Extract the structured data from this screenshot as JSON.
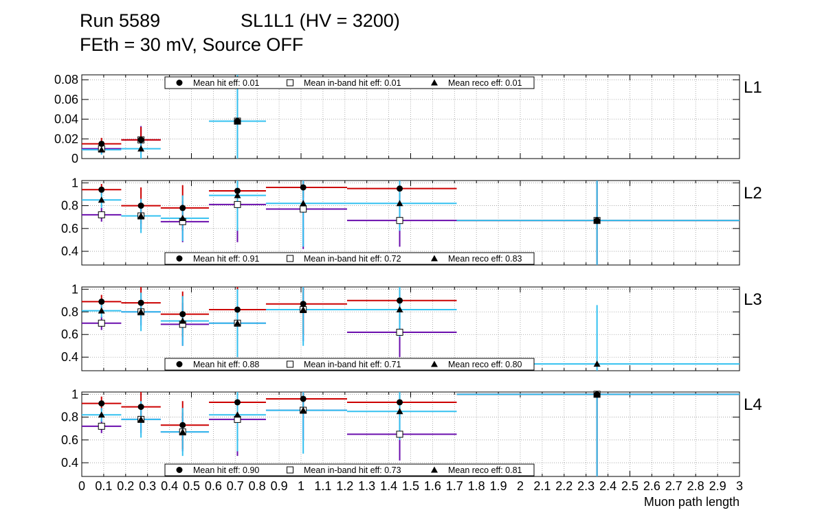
{
  "header": {
    "run": "Run 5589",
    "chamber": "SL1L1 (HV = 3200)",
    "settings": "FEth = 30 mV, Source OFF"
  },
  "colors": {
    "hit": "#cc0000",
    "inband": "#6a0dad",
    "reco": "#33c1f0",
    "grid": "#999999",
    "axis": "#000000"
  },
  "chart_data": {
    "type": "scatter",
    "xlabel": "Muon path length",
    "xlim": [
      0,
      3
    ],
    "xticks": [
      {
        "v": 0,
        "label": "0"
      },
      {
        "v": 0.1,
        "label": "0.1"
      },
      {
        "v": 0.2,
        "label": "0.2"
      },
      {
        "v": 0.3,
        "label": "0.3"
      },
      {
        "v": 0.4,
        "label": "0.4"
      },
      {
        "v": 0.5,
        "label": "0.5"
      },
      {
        "v": 0.6,
        "label": "0.6"
      },
      {
        "v": 0.7,
        "label": "0.7"
      },
      {
        "v": 0.8,
        "label": "0.8"
      },
      {
        "v": 0.9,
        "label": "0.9"
      },
      {
        "v": 1.0,
        "label": "1"
      },
      {
        "v": 1.1,
        "label": "1.1"
      },
      {
        "v": 1.2,
        "label": "1.2"
      },
      {
        "v": 1.3,
        "label": "1.3"
      },
      {
        "v": 1.4,
        "label": "1.4"
      },
      {
        "v": 1.5,
        "label": "1.5"
      },
      {
        "v": 1.6,
        "label": "1.6"
      },
      {
        "v": 1.7,
        "label": "1.7"
      },
      {
        "v": 1.8,
        "label": "1.8"
      },
      {
        "v": 1.9,
        "label": "1.9"
      },
      {
        "v": 2.0,
        "label": "2"
      },
      {
        "v": 2.1,
        "label": "2.1"
      },
      {
        "v": 2.2,
        "label": "2.2"
      },
      {
        "v": 2.3,
        "label": "2.3"
      },
      {
        "v": 2.4,
        "label": "2.4"
      },
      {
        "v": 2.5,
        "label": "2.5"
      },
      {
        "v": 2.6,
        "label": "2.6"
      },
      {
        "v": 2.7,
        "label": "2.7"
      },
      {
        "v": 2.8,
        "label": "2.8"
      },
      {
        "v": 2.9,
        "label": "2.9"
      },
      {
        "v": 3.0,
        "label": "3"
      }
    ],
    "legend_labels": {
      "hit": "Mean hit  eff:",
      "inband": "Mean in-band hit eff:",
      "reco": "Mean reco eff:"
    },
    "panels": [
      {
        "name": "L1",
        "ylim": [
          0,
          0.085
        ],
        "yticks": [
          {
            "v": 0,
            "label": "0"
          },
          {
            "v": 0.02,
            "label": "0.02"
          },
          {
            "v": 0.04,
            "label": "0.04"
          },
          {
            "v": 0.06,
            "label": "0.06"
          },
          {
            "v": 0.08,
            "label": "0.08"
          }
        ],
        "legend": {
          "position": "top",
          "hit": "0.01",
          "inband": "0.01",
          "reco": "0.01"
        },
        "series": {
          "hit": [
            {
              "x": 0.09,
              "xlo": 0.0,
              "xhi": 0.18,
              "y": 0.015,
              "ylo": 0.009,
              "yhi": 0.021
            },
            {
              "x": 0.27,
              "xlo": 0.18,
              "xhi": 0.36,
              "y": 0.019,
              "ylo": 0.006,
              "yhi": 0.032
            },
            {
              "x": 0.71,
              "xlo": 0.58,
              "xhi": 0.84,
              "y": 0.038,
              "ylo": 0.0,
              "yhi": 0.085
            }
          ],
          "inband": [
            {
              "x": 0.09,
              "xlo": 0.0,
              "xhi": 0.18,
              "y": 0.01,
              "ylo": 0.005,
              "yhi": 0.015
            },
            {
              "x": 0.27,
              "xlo": 0.18,
              "xhi": 0.36,
              "y": 0.019,
              "ylo": 0.006,
              "yhi": 0.033
            },
            {
              "x": 0.71,
              "xlo": 0.58,
              "xhi": 0.84,
              "y": 0.038,
              "ylo": 0.0,
              "yhi": 0.085
            }
          ],
          "reco": [
            {
              "x": 0.09,
              "xlo": 0.0,
              "xhi": 0.18,
              "y": 0.009,
              "ylo": 0.004,
              "yhi": 0.014
            },
            {
              "x": 0.27,
              "xlo": 0.18,
              "xhi": 0.36,
              "y": 0.01,
              "ylo": 0.0,
              "yhi": 0.022
            },
            {
              "x": 0.71,
              "xlo": 0.58,
              "xhi": 0.84,
              "y": 0.038,
              "ylo": 0.0,
              "yhi": 0.085
            }
          ]
        }
      },
      {
        "name": "L2",
        "ylim": [
          0.28,
          1.02
        ],
        "yticks": [
          {
            "v": 0.4,
            "label": "0.4"
          },
          {
            "v": 0.6,
            "label": "0.6"
          },
          {
            "v": 0.8,
            "label": "0.8"
          },
          {
            "v": 1.0,
            "label": "1"
          }
        ],
        "legend": {
          "position": "bottom",
          "hit": "0.91",
          "inband": "0.72",
          "reco": "0.83"
        },
        "series": {
          "hit": [
            {
              "x": 0.09,
              "xlo": 0.0,
              "xhi": 0.18,
              "y": 0.94,
              "ylo": 0.89,
              "yhi": 0.99
            },
            {
              "x": 0.27,
              "xlo": 0.18,
              "xhi": 0.36,
              "y": 0.8,
              "ylo": 0.64,
              "yhi": 0.96
            },
            {
              "x": 0.46,
              "xlo": 0.36,
              "xhi": 0.58,
              "y": 0.78,
              "ylo": 0.58,
              "yhi": 0.98
            },
            {
              "x": 0.71,
              "xlo": 0.58,
              "xhi": 0.84,
              "y": 0.93,
              "ylo": 0.82,
              "yhi": 1.02
            },
            {
              "x": 1.01,
              "xlo": 0.84,
              "xhi": 1.21,
              "y": 0.96,
              "ylo": 0.87,
              "yhi": 1.02
            },
            {
              "x": 1.45,
              "xlo": 1.21,
              "xhi": 1.71,
              "y": 0.95,
              "ylo": 0.86,
              "yhi": 1.02
            },
            {
              "x": 2.35,
              "xlo": 1.71,
              "xhi": 3.0,
              "y": 0.67,
              "ylo": 0.28,
              "yhi": 1.02
            }
          ],
          "inband": [
            {
              "x": 0.09,
              "xlo": 0.0,
              "xhi": 0.18,
              "y": 0.72,
              "ylo": 0.66,
              "yhi": 0.78
            },
            {
              "x": 0.27,
              "xlo": 0.18,
              "xhi": 0.36,
              "y": 0.71,
              "ylo": 0.6,
              "yhi": 0.82
            },
            {
              "x": 0.46,
              "xlo": 0.36,
              "xhi": 0.58,
              "y": 0.66,
              "ylo": 0.48,
              "yhi": 0.84
            },
            {
              "x": 0.71,
              "xlo": 0.58,
              "xhi": 0.84,
              "y": 0.81,
              "ylo": 0.48,
              "yhi": 1.02
            },
            {
              "x": 1.01,
              "xlo": 0.84,
              "xhi": 1.21,
              "y": 0.77,
              "ylo": 0.42,
              "yhi": 1.02
            },
            {
              "x": 1.45,
              "xlo": 1.21,
              "xhi": 1.71,
              "y": 0.67,
              "ylo": 0.44,
              "yhi": 0.9
            },
            {
              "x": 2.35,
              "xlo": 1.71,
              "xhi": 3.0,
              "y": 0.67,
              "ylo": 0.28,
              "yhi": 1.02
            }
          ],
          "reco": [
            {
              "x": 0.09,
              "xlo": 0.0,
              "xhi": 0.18,
              "y": 0.85,
              "ylo": 0.78,
              "yhi": 0.92
            },
            {
              "x": 0.27,
              "xlo": 0.18,
              "xhi": 0.36,
              "y": 0.71,
              "ylo": 0.56,
              "yhi": 0.86
            },
            {
              "x": 0.46,
              "xlo": 0.36,
              "xhi": 0.58,
              "y": 0.69,
              "ylo": 0.49,
              "yhi": 0.89
            },
            {
              "x": 0.71,
              "xlo": 0.58,
              "xhi": 0.84,
              "y": 0.89,
              "ylo": 0.58,
              "yhi": 1.02
            },
            {
              "x": 1.01,
              "xlo": 0.84,
              "xhi": 1.21,
              "y": 0.82,
              "ylo": 0.44,
              "yhi": 1.02
            },
            {
              "x": 1.45,
              "xlo": 1.21,
              "xhi": 1.71,
              "y": 0.82,
              "ylo": 0.58,
              "yhi": 1.02
            },
            {
              "x": 2.35,
              "xlo": 1.71,
              "xhi": 3.0,
              "y": 0.67,
              "ylo": 0.28,
              "yhi": 1.02
            }
          ]
        }
      },
      {
        "name": "L3",
        "ylim": [
          0.28,
          1.02
        ],
        "yticks": [
          {
            "v": 0.4,
            "label": "0.4"
          },
          {
            "v": 0.6,
            "label": "0.6"
          },
          {
            "v": 0.8,
            "label": "0.8"
          },
          {
            "v": 1.0,
            "label": "1"
          }
        ],
        "legend": {
          "position": "bottom",
          "hit": "0.88",
          "inband": "0.71",
          "reco": "0.80"
        },
        "series": {
          "hit": [
            {
              "x": 0.09,
              "xlo": 0.0,
              "xhi": 0.18,
              "y": 0.89,
              "ylo": 0.83,
              "yhi": 0.95
            },
            {
              "x": 0.27,
              "xlo": 0.18,
              "xhi": 0.36,
              "y": 0.88,
              "ylo": 0.74,
              "yhi": 1.02
            },
            {
              "x": 0.46,
              "xlo": 0.36,
              "xhi": 0.58,
              "y": 0.78,
              "ylo": 0.58,
              "yhi": 0.98
            },
            {
              "x": 0.71,
              "xlo": 0.58,
              "xhi": 0.84,
              "y": 0.82,
              "ylo": 0.5,
              "yhi": 1.02
            },
            {
              "x": 1.01,
              "xlo": 0.84,
              "xhi": 1.21,
              "y": 0.87,
              "ylo": 0.6,
              "yhi": 1.02
            },
            {
              "x": 1.45,
              "xlo": 1.21,
              "xhi": 1.71,
              "y": 0.9,
              "ylo": 0.7,
              "yhi": 1.02
            }
          ],
          "inband": [
            {
              "x": 0.09,
              "xlo": 0.0,
              "xhi": 0.18,
              "y": 0.7,
              "ylo": 0.64,
              "yhi": 0.76
            },
            {
              "x": 0.27,
              "xlo": 0.18,
              "xhi": 0.36,
              "y": 0.8,
              "ylo": 0.68,
              "yhi": 0.92
            },
            {
              "x": 0.46,
              "xlo": 0.36,
              "xhi": 0.58,
              "y": 0.69,
              "ylo": 0.5,
              "yhi": 0.88
            },
            {
              "x": 0.71,
              "xlo": 0.58,
              "xhi": 0.84,
              "y": 0.7,
              "ylo": 0.4,
              "yhi": 1.0
            },
            {
              "x": 1.01,
              "xlo": 0.84,
              "xhi": 1.21,
              "y": 0.82,
              "ylo": 0.54,
              "yhi": 1.02
            },
            {
              "x": 1.45,
              "xlo": 1.21,
              "xhi": 1.71,
              "y": 0.62,
              "ylo": 0.4,
              "yhi": 0.84
            }
          ],
          "reco": [
            {
              "x": 0.09,
              "xlo": 0.0,
              "xhi": 0.18,
              "y": 0.81,
              "ylo": 0.75,
              "yhi": 0.87
            },
            {
              "x": 0.27,
              "xlo": 0.18,
              "xhi": 0.36,
              "y": 0.8,
              "ylo": 0.63,
              "yhi": 0.97
            },
            {
              "x": 0.46,
              "xlo": 0.36,
              "xhi": 0.58,
              "y": 0.72,
              "ylo": 0.5,
              "yhi": 0.94
            },
            {
              "x": 0.71,
              "xlo": 0.58,
              "xhi": 0.84,
              "y": 0.7,
              "ylo": 0.4,
              "yhi": 1.0
            },
            {
              "x": 1.01,
              "xlo": 0.84,
              "xhi": 1.21,
              "y": 0.82,
              "ylo": 0.5,
              "yhi": 1.02
            },
            {
              "x": 1.45,
              "xlo": 1.21,
              "xhi": 1.71,
              "y": 0.82,
              "ylo": 0.58,
              "yhi": 1.02
            },
            {
              "x": 2.35,
              "xlo": 1.71,
              "xhi": 3.0,
              "y": 0.34,
              "ylo": 0.28,
              "yhi": 0.86
            }
          ]
        }
      },
      {
        "name": "L4",
        "ylim": [
          0.28,
          1.02
        ],
        "yticks": [
          {
            "v": 0.4,
            "label": "0.4"
          },
          {
            "v": 0.6,
            "label": "0.6"
          },
          {
            "v": 0.8,
            "label": "0.8"
          },
          {
            "v": 1.0,
            "label": "1"
          }
        ],
        "legend": {
          "position": "bottom",
          "hit": "0.90",
          "inband": "0.73",
          "reco": "0.81"
        },
        "series": {
          "hit": [
            {
              "x": 0.09,
              "xlo": 0.0,
              "xhi": 0.18,
              "y": 0.92,
              "ylo": 0.86,
              "yhi": 0.98
            },
            {
              "x": 0.27,
              "xlo": 0.18,
              "xhi": 0.36,
              "y": 0.89,
              "ylo": 0.76,
              "yhi": 1.02
            },
            {
              "x": 0.46,
              "xlo": 0.36,
              "xhi": 0.58,
              "y": 0.73,
              "ylo": 0.52,
              "yhi": 0.94
            },
            {
              "x": 0.71,
              "xlo": 0.58,
              "xhi": 0.84,
              "y": 0.93,
              "ylo": 0.8,
              "yhi": 1.02
            },
            {
              "x": 1.01,
              "xlo": 0.84,
              "xhi": 1.21,
              "y": 0.96,
              "ylo": 0.86,
              "yhi": 1.02
            },
            {
              "x": 1.45,
              "xlo": 1.21,
              "xhi": 1.71,
              "y": 0.93,
              "ylo": 0.8,
              "yhi": 1.02
            },
            {
              "x": 2.35,
              "xlo": 1.71,
              "xhi": 3.0,
              "y": 1.0,
              "ylo": 0.28,
              "yhi": 1.02
            }
          ],
          "inband": [
            {
              "x": 0.09,
              "xlo": 0.0,
              "xhi": 0.18,
              "y": 0.72,
              "ylo": 0.66,
              "yhi": 0.78
            },
            {
              "x": 0.27,
              "xlo": 0.18,
              "xhi": 0.36,
              "y": 0.78,
              "ylo": 0.66,
              "yhi": 0.9
            },
            {
              "x": 0.46,
              "xlo": 0.36,
              "xhi": 0.58,
              "y": 0.67,
              "ylo": 0.5,
              "yhi": 0.84
            },
            {
              "x": 0.71,
              "xlo": 0.58,
              "xhi": 0.84,
              "y": 0.78,
              "ylo": 0.46,
              "yhi": 1.02
            },
            {
              "x": 1.01,
              "xlo": 0.84,
              "xhi": 1.21,
              "y": 0.86,
              "ylo": 0.6,
              "yhi": 1.02
            },
            {
              "x": 1.45,
              "xlo": 1.21,
              "xhi": 1.71,
              "y": 0.65,
              "ylo": 0.42,
              "yhi": 0.88
            },
            {
              "x": 2.35,
              "xlo": 1.71,
              "xhi": 3.0,
              "y": 1.0,
              "ylo": 0.28,
              "yhi": 1.02
            }
          ],
          "reco": [
            {
              "x": 0.09,
              "xlo": 0.0,
              "xhi": 0.18,
              "y": 0.82,
              "ylo": 0.76,
              "yhi": 0.88
            },
            {
              "x": 0.27,
              "xlo": 0.18,
              "xhi": 0.36,
              "y": 0.78,
              "ylo": 0.62,
              "yhi": 0.94
            },
            {
              "x": 0.46,
              "xlo": 0.36,
              "xhi": 0.58,
              "y": 0.67,
              "ylo": 0.46,
              "yhi": 0.88
            },
            {
              "x": 0.71,
              "xlo": 0.58,
              "xhi": 0.84,
              "y": 0.82,
              "ylo": 0.5,
              "yhi": 1.02
            },
            {
              "x": 1.01,
              "xlo": 0.84,
              "xhi": 1.21,
              "y": 0.86,
              "ylo": 0.48,
              "yhi": 1.02
            },
            {
              "x": 1.45,
              "xlo": 1.21,
              "xhi": 1.71,
              "y": 0.85,
              "ylo": 0.6,
              "yhi": 1.02
            },
            {
              "x": 2.35,
              "xlo": 1.71,
              "xhi": 3.0,
              "y": 1.0,
              "ylo": 0.28,
              "yhi": 1.02
            }
          ]
        }
      }
    ]
  }
}
